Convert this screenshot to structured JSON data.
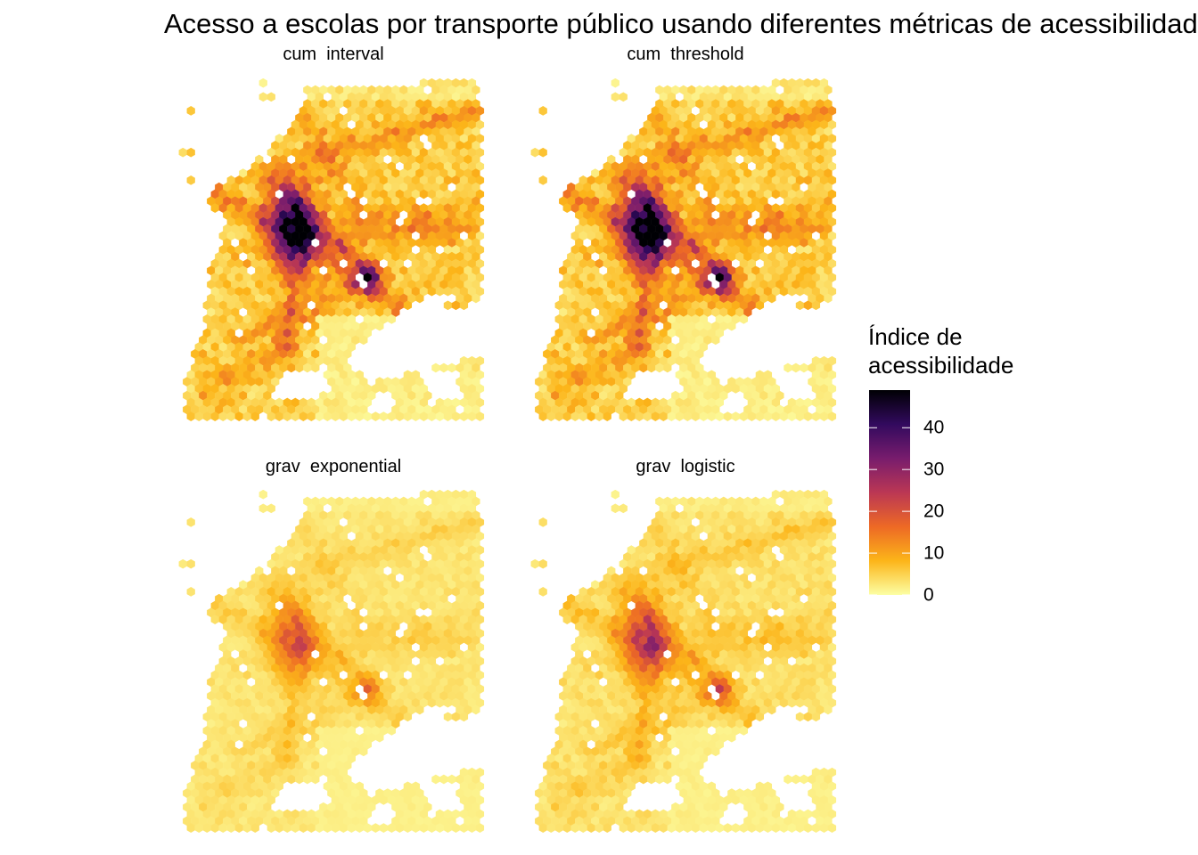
{
  "title": "Acesso a escolas por transporte público usando diferentes métricas de acessibilidade",
  "panels": [
    {
      "label": "cum  interval",
      "scale": 1.0,
      "mx": 0.5,
      "my": 0.4
    },
    {
      "label": "cum  threshold",
      "scale": 1.0,
      "mx": 0.5,
      "my": 0.4
    },
    {
      "label": "grav  exponential",
      "scale": 0.34,
      "mx": 0.55,
      "my": 0.45
    },
    {
      "label": "grav  logistic",
      "scale": 0.46,
      "mx": 0.55,
      "my": 0.45
    }
  ],
  "legend": {
    "title_line1": "Índice de",
    "title_line2": "acessibilidade",
    "ticks": [
      0,
      10,
      20,
      30,
      40
    ],
    "max": 49
  },
  "colors": {
    "scale": [
      "#fcffa4",
      "#fcb519",
      "#ed6925",
      "#bb3754",
      "#781c6d",
      "#320a5e",
      "#000004"
    ]
  }
}
